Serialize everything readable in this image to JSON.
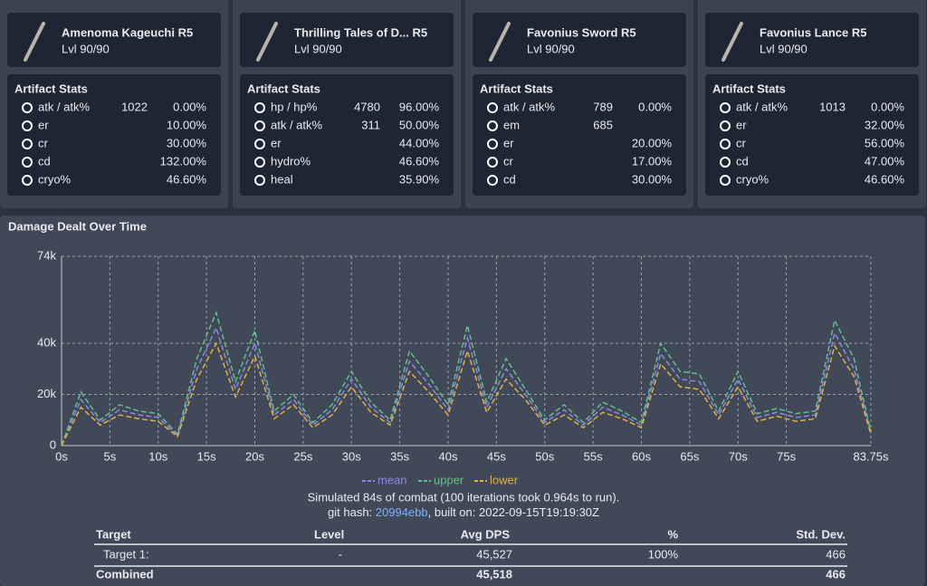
{
  "weapons": [
    {
      "name": "Amenoma Kageuchi R5",
      "level": "Lvl 90/90"
    },
    {
      "name": "Thrilling Tales of D... R5",
      "level": "Lvl 90/90"
    },
    {
      "name": "Favonius Sword R5",
      "level": "Lvl 90/90"
    },
    {
      "name": "Favonius Lance R5",
      "level": "Lvl 90/90"
    }
  ],
  "artifacts": [
    {
      "title": "Artifact Stats",
      "rows": [
        {
          "name": "atk / atk%",
          "flat": "1022",
          "percent": "0.00%"
        },
        {
          "name": "er",
          "percent": "10.00%"
        },
        {
          "name": "cr",
          "percent": "30.00%"
        },
        {
          "name": "cd",
          "percent": "132.00%"
        },
        {
          "name": "cryo%",
          "percent": "46.60%"
        }
      ]
    },
    {
      "title": "Artifact Stats",
      "rows": [
        {
          "name": "hp / hp%",
          "flat": "4780",
          "percent": "96.00%"
        },
        {
          "name": "atk / atk%",
          "flat": "311",
          "percent": "50.00%"
        },
        {
          "name": "er",
          "percent": "44.00%"
        },
        {
          "name": "hydro%",
          "percent": "46.60%"
        },
        {
          "name": "heal",
          "percent": "35.90%"
        }
      ]
    },
    {
      "title": "Artifact Stats",
      "rows": [
        {
          "name": "atk / atk%",
          "flat": "789",
          "percent": "0.00%"
        },
        {
          "name": "em",
          "flat": "685"
        },
        {
          "name": "er",
          "percent": "20.00%"
        },
        {
          "name": "cr",
          "percent": "17.00%"
        },
        {
          "name": "cd",
          "percent": "30.00%"
        }
      ]
    },
    {
      "title": "Artifact Stats",
      "rows": [
        {
          "name": "atk / atk%",
          "flat": "1013",
          "percent": "0.00%"
        },
        {
          "name": "er",
          "percent": "32.00%"
        },
        {
          "name": "cr",
          "percent": "56.00%"
        },
        {
          "name": "cd",
          "percent": "47.00%"
        },
        {
          "name": "cryo%",
          "percent": "46.60%"
        }
      ]
    }
  ],
  "chart_data": {
    "type": "line",
    "title": "Damage Dealt Over Time",
    "x": [
      0,
      2,
      4,
      6,
      8,
      10,
      12,
      14,
      16,
      18,
      20,
      22,
      24,
      26,
      28,
      30,
      32,
      34,
      36,
      38,
      40,
      42,
      44,
      46,
      48,
      50,
      52,
      54,
      56,
      58,
      60,
      62,
      64,
      66,
      68,
      70,
      72,
      74,
      76,
      78,
      80,
      82,
      83.75
    ],
    "series": [
      {
        "name": "mean",
        "color": "#8b87e0",
        "values": [
          0,
          18000,
          9000,
          14000,
          12000,
          11000,
          4000,
          30000,
          46000,
          22000,
          40000,
          12000,
          18000,
          8000,
          14000,
          26000,
          15000,
          9000,
          33000,
          24000,
          14000,
          42000,
          15000,
          30000,
          20000,
          9000,
          14000,
          8000,
          15000,
          12000,
          8000,
          36000,
          26000,
          25000,
          12000,
          26000,
          11000,
          13000,
          11000,
          12000,
          44000,
          30000,
          5000
        ]
      },
      {
        "name": "upper",
        "color": "#5fbf8a",
        "values": [
          0,
          21000,
          10000,
          16000,
          13500,
          12500,
          4500,
          34000,
          52000,
          25000,
          45000,
          13500,
          20000,
          9000,
          16000,
          29000,
          17000,
          10000,
          37000,
          27000,
          16000,
          47000,
          17000,
          34000,
          22000,
          10000,
          16000,
          9000,
          17000,
          13500,
          9000,
          40000,
          29000,
          28000,
          13500,
          29000,
          12500,
          14500,
          12500,
          13500,
          49000,
          34000,
          5500
        ]
      },
      {
        "name": "lower",
        "color": "#e0b040",
        "values": [
          0,
          15000,
          8000,
          12000,
          10500,
          9500,
          3500,
          26000,
          40000,
          19000,
          35000,
          10500,
          16000,
          7000,
          12000,
          23000,
          13000,
          8000,
          29000,
          21000,
          12000,
          37000,
          13000,
          26000,
          18000,
          8000,
          12000,
          7000,
          13000,
          10500,
          7000,
          32000,
          23000,
          22000,
          10500,
          23000,
          9500,
          11500,
          9500,
          10500,
          39000,
          27000,
          4500
        ]
      }
    ],
    "xlim": [
      0,
      83.75
    ],
    "xticks": [
      {
        "value": 0,
        "label": "0s"
      },
      {
        "value": 5,
        "label": "5s"
      },
      {
        "value": 10,
        "label": "10s"
      },
      {
        "value": 15,
        "label": "15s"
      },
      {
        "value": 20,
        "label": "20s"
      },
      {
        "value": 25,
        "label": "25s"
      },
      {
        "value": 30,
        "label": "30s"
      },
      {
        "value": 35,
        "label": "35s"
      },
      {
        "value": 40,
        "label": "40s"
      },
      {
        "value": 45,
        "label": "45s"
      },
      {
        "value": 50,
        "label": "50s"
      },
      {
        "value": 55,
        "label": "55s"
      },
      {
        "value": 60,
        "label": "60s"
      },
      {
        "value": 65,
        "label": "65s"
      },
      {
        "value": 70,
        "label": "70s"
      },
      {
        "value": 75,
        "label": "75s"
      },
      {
        "value": 83.75,
        "label": "83.75s"
      }
    ],
    "ylim": [
      0,
      74000
    ],
    "yticks": [
      0,
      {
        "value": 20000,
        "label": "20k"
      },
      {
        "value": 40000,
        "label": "40k"
      },
      {
        "value": 74000,
        "label": "74k"
      }
    ],
    "grid": true,
    "legend": "bottom"
  },
  "summary": {
    "line1": "Simulated 84s of combat (100 iterations took 0.964s to run).",
    "hash_prefix": "git hash: ",
    "hash": "20994ebb",
    "built": ", built on: 2022-09-15T19:19:30Z"
  },
  "table": {
    "header": [
      "Target",
      "Level",
      "Avg DPS",
      "%",
      "Std. Dev."
    ],
    "rows": [
      [
        "Target 1:",
        "-",
        "45,527",
        "100%",
        "466"
      ],
      [
        "Combined",
        null,
        "45,518",
        null,
        "466"
      ]
    ]
  }
}
